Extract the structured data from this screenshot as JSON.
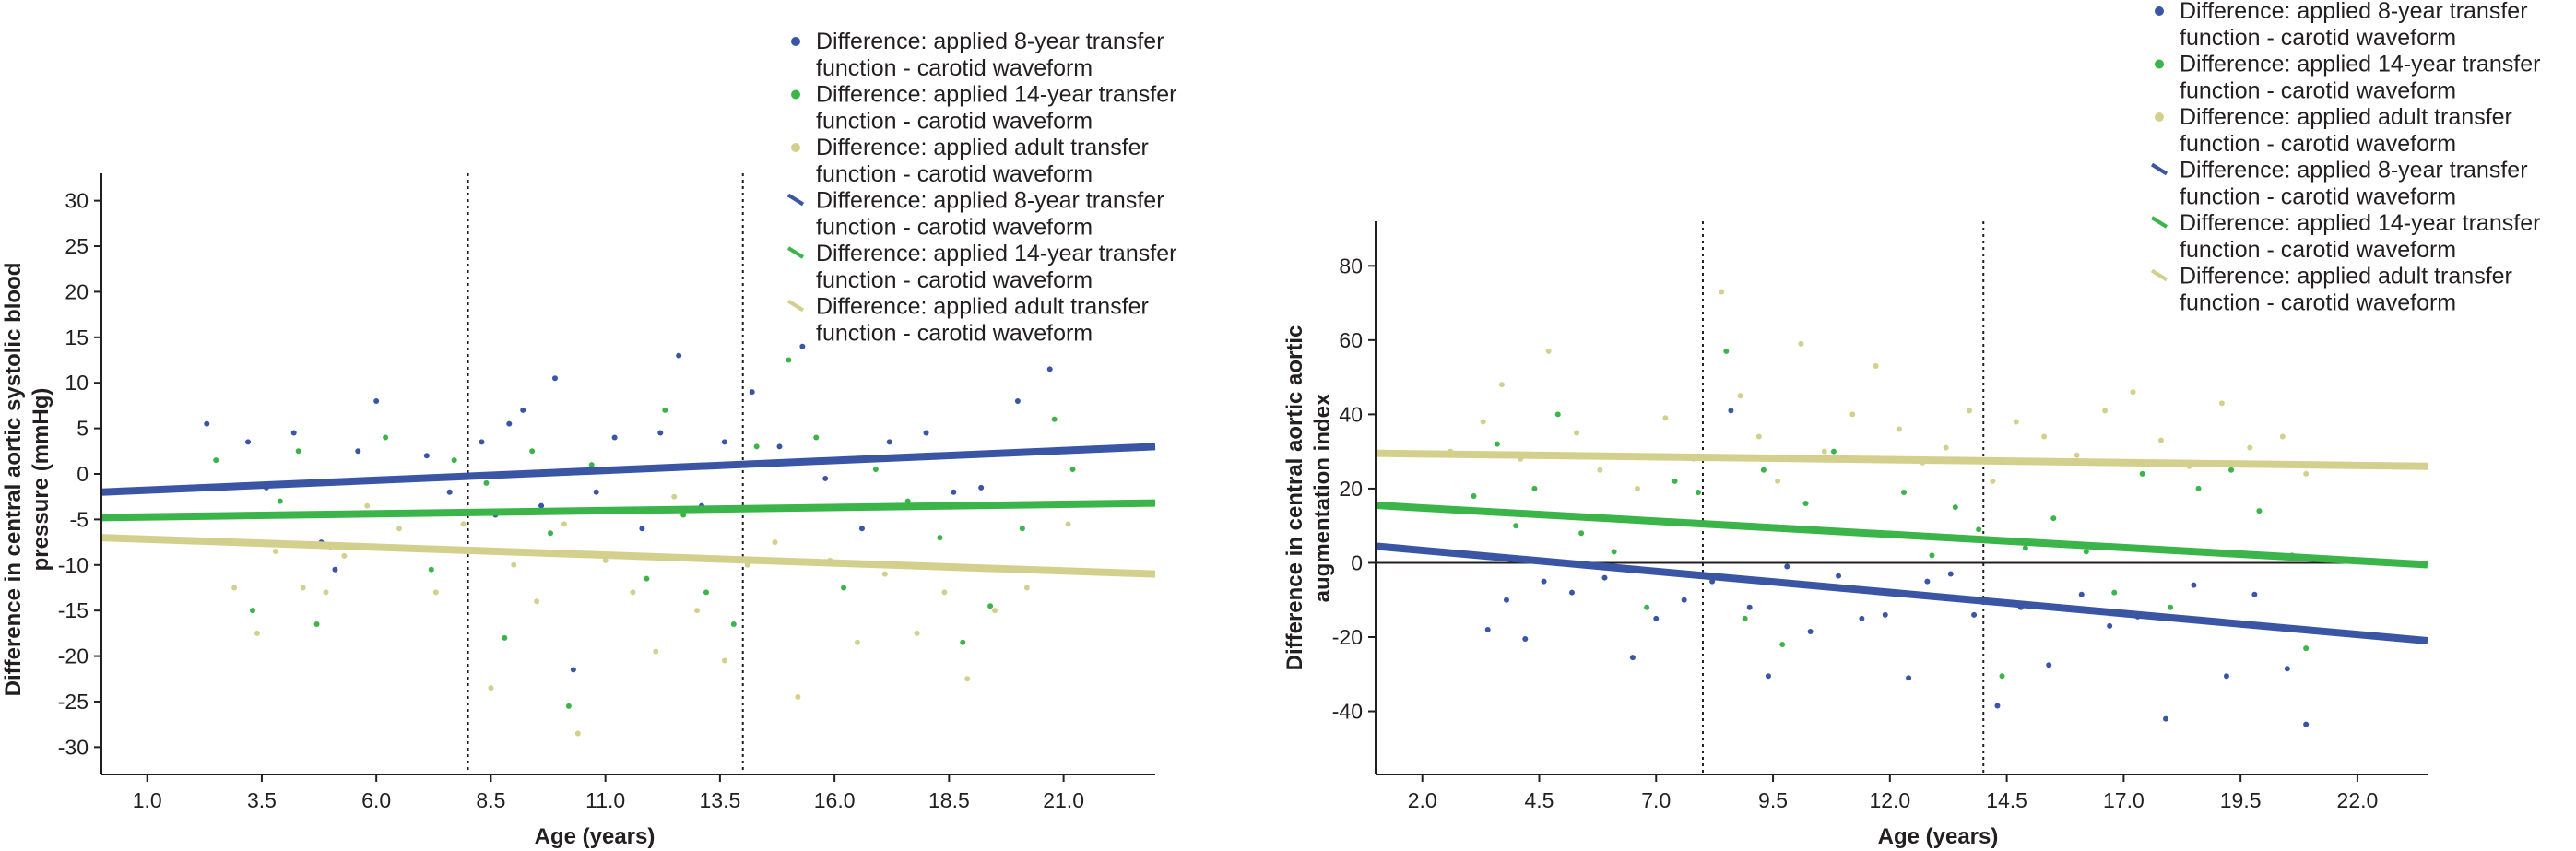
{
  "colors": {
    "blue": "#3a55a4",
    "green": "#3bb44a",
    "tan": "#d3d08e",
    "axis": "#231f20"
  },
  "chart_data": [
    {
      "type": "scatter",
      "xlabel": "Age (years)",
      "ylabel": "Difference in central aortic systolic blood pressure (mmHg)",
      "xlim": [
        0,
        23
      ],
      "ylim": [
        -33,
        33
      ],
      "x_ticks": [
        1.0,
        3.5,
        6.0,
        8.5,
        11.0,
        13.5,
        16.0,
        18.5,
        21.0
      ],
      "x_tick_labels": [
        "1.0",
        "3.5",
        "6.0",
        "8.5",
        "11.0",
        "13.5",
        "16.0",
        "18.5",
        "21.0"
      ],
      "y_ticks": [
        30,
        25,
        20,
        15,
        10,
        5,
        0,
        -5,
        -10,
        -15,
        -20,
        -25,
        -30
      ],
      "y_tick_labels": [
        "30",
        "25",
        "20",
        "15",
        "10",
        "5",
        "0",
        "-5",
        "-10",
        "-15",
        "-20",
        "-25",
        "-30"
      ],
      "vertical_lines": [
        8.0,
        14.0
      ],
      "legend_position": "top-right",
      "series": [
        {
          "name": "Difference: applied 8-year transfer function - carotid waveform",
          "color": "blue",
          "points": [
            [
              2.3,
              5.5
            ],
            [
              3.2,
              3.5
            ],
            [
              3.6,
              -1.5
            ],
            [
              4.2,
              4.5
            ],
            [
              4.8,
              -7.5
            ],
            [
              5.1,
              -10.5
            ],
            [
              5.6,
              2.5
            ],
            [
              6.0,
              8.0
            ],
            [
              7.1,
              2.0
            ],
            [
              7.6,
              -2.0
            ],
            [
              8.3,
              3.5
            ],
            [
              8.6,
              -4.5
            ],
            [
              8.9,
              5.5
            ],
            [
              9.2,
              7.0
            ],
            [
              9.6,
              -3.5
            ],
            [
              9.9,
              10.5
            ],
            [
              10.3,
              -21.5
            ],
            [
              10.8,
              -2.0
            ],
            [
              11.2,
              4.0
            ],
            [
              11.8,
              -6.0
            ],
            [
              12.2,
              4.5
            ],
            [
              12.6,
              13.0
            ],
            [
              13.1,
              -3.5
            ],
            [
              13.6,
              3.5
            ],
            [
              14.2,
              9.0
            ],
            [
              14.8,
              3.0
            ],
            [
              15.3,
              14.0
            ],
            [
              15.8,
              -0.5
            ],
            [
              16.6,
              -6.0
            ],
            [
              17.2,
              3.5
            ],
            [
              18.0,
              4.5
            ],
            [
              18.6,
              -2.0
            ],
            [
              19.2,
              -1.5
            ],
            [
              20.0,
              8.0
            ],
            [
              20.7,
              11.5
            ],
            [
              21.1,
              2.5
            ]
          ]
        },
        {
          "name": "Difference: applied 14-year transfer function - carotid waveform",
          "color": "green",
          "points": [
            [
              2.5,
              1.5
            ],
            [
              3.3,
              -15.0
            ],
            [
              3.9,
              -3.0
            ],
            [
              4.3,
              2.5
            ],
            [
              4.7,
              -16.5
            ],
            [
              5.0,
              -8.0
            ],
            [
              5.5,
              -4.5
            ],
            [
              6.2,
              4.0
            ],
            [
              7.2,
              -10.5
            ],
            [
              7.7,
              1.5
            ],
            [
              8.4,
              -1.0
            ],
            [
              8.8,
              -18.0
            ],
            [
              9.4,
              2.5
            ],
            [
              9.8,
              -6.5
            ],
            [
              10.2,
              -25.5
            ],
            [
              10.7,
              1.0
            ],
            [
              11.4,
              -4.0
            ],
            [
              11.9,
              -11.5
            ],
            [
              12.3,
              7.0
            ],
            [
              12.7,
              -4.5
            ],
            [
              13.2,
              -13.0
            ],
            [
              13.8,
              -16.5
            ],
            [
              14.3,
              3.0
            ],
            [
              15.0,
              12.5
            ],
            [
              15.6,
              4.0
            ],
            [
              16.2,
              -12.5
            ],
            [
              16.9,
              0.5
            ],
            [
              17.6,
              -3.0
            ],
            [
              18.3,
              -7.0
            ],
            [
              18.8,
              -18.5
            ],
            [
              19.4,
              -14.5
            ],
            [
              20.1,
              -6.0
            ],
            [
              20.8,
              6.0
            ],
            [
              21.2,
              0.5
            ]
          ]
        },
        {
          "name": "Difference: applied adult transfer function - carotid waveform",
          "color": "tan",
          "points": [
            [
              2.9,
              -12.5
            ],
            [
              3.4,
              -17.5
            ],
            [
              3.8,
              -8.5
            ],
            [
              4.4,
              -12.5
            ],
            [
              4.9,
              -13.0
            ],
            [
              5.3,
              -9.0
            ],
            [
              5.8,
              -3.5
            ],
            [
              6.5,
              -6.0
            ],
            [
              7.3,
              -13.0
            ],
            [
              7.9,
              -5.5
            ],
            [
              8.5,
              -23.5
            ],
            [
              9.0,
              -10.0
            ],
            [
              9.5,
              -14.0
            ],
            [
              10.1,
              -5.5
            ],
            [
              10.4,
              -28.5
            ],
            [
              11.0,
              -9.5
            ],
            [
              11.6,
              -13.0
            ],
            [
              12.1,
              -19.5
            ],
            [
              12.5,
              -2.5
            ],
            [
              13.0,
              -15.0
            ],
            [
              13.6,
              -20.5
            ],
            [
              14.1,
              -10.0
            ],
            [
              14.7,
              -7.5
            ],
            [
              15.2,
              -24.5
            ],
            [
              15.9,
              -9.5
            ],
            [
              16.5,
              -18.5
            ],
            [
              17.1,
              -11.0
            ],
            [
              17.8,
              -17.5
            ],
            [
              18.4,
              -13.0
            ],
            [
              18.9,
              -22.5
            ],
            [
              19.5,
              -15.0
            ],
            [
              20.2,
              -12.5
            ],
            [
              20.9,
              -10.5
            ],
            [
              21.1,
              -5.5
            ]
          ]
        }
      ],
      "trendlines": [
        {
          "name": "Difference: applied 8-year transfer function - carotid waveform",
          "color": "blue",
          "x": [
            0,
            23
          ],
          "y": [
            -2.0,
            3.0
          ]
        },
        {
          "name": "Difference: applied 14-year transfer function - carotid waveform",
          "color": "green",
          "x": [
            0,
            23
          ],
          "y": [
            -4.8,
            -3.2
          ]
        },
        {
          "name": "Difference: applied adult transfer function - carotid waveform",
          "color": "tan",
          "x": [
            0,
            23
          ],
          "y": [
            -7.0,
            -11.0
          ]
        }
      ]
    },
    {
      "type": "scatter",
      "xlabel": "Age (years)",
      "ylabel": "Difference in central aortic aortic augmentation index",
      "xlim": [
        1.0,
        23.5
      ],
      "ylim": [
        -57,
        92
      ],
      "x_ticks": [
        2.0,
        4.5,
        7.0,
        9.5,
        12.0,
        14.5,
        17.0,
        19.5,
        22.0
      ],
      "x_tick_labels": [
        "2.0",
        "4.5",
        "7.0",
        "9.5",
        "12.0",
        "14.5",
        "17.0",
        "19.5",
        "22.0"
      ],
      "y_ticks": [
        80,
        60,
        40,
        20,
        0,
        -20,
        -40
      ],
      "y_tick_labels": [
        "80",
        "60",
        "40",
        "20",
        "0",
        "-20",
        "-40"
      ],
      "vertical_lines": [
        8.0,
        14.0
      ],
      "zero_line": true,
      "legend_position": "top-right",
      "series": [
        {
          "name": "Difference: applied 8-year transfer function - carotid waveform",
          "color": "blue",
          "points": [
            [
              3.4,
              -18.0
            ],
            [
              3.8,
              -10.0
            ],
            [
              4.2,
              -20.5
            ],
            [
              4.6,
              -5.0
            ],
            [
              5.2,
              -8.0
            ],
            [
              5.9,
              -4.0
            ],
            [
              6.5,
              -25.5
            ],
            [
              7.0,
              -15.0
            ],
            [
              7.6,
              -10.0
            ],
            [
              8.2,
              -5.0
            ],
            [
              8.6,
              41.0
            ],
            [
              9.0,
              -12.0
            ],
            [
              9.4,
              -30.5
            ],
            [
              9.8,
              -1.0
            ],
            [
              10.3,
              -18.5
            ],
            [
              10.9,
              -3.5
            ],
            [
              11.4,
              -15.0
            ],
            [
              11.9,
              -14.0
            ],
            [
              12.4,
              -31.0
            ],
            [
              12.8,
              -5.0
            ],
            [
              13.3,
              -3.0
            ],
            [
              13.8,
              -14.0
            ],
            [
              14.3,
              -38.5
            ],
            [
              14.8,
              -12.0
            ],
            [
              15.4,
              -27.5
            ],
            [
              16.1,
              -8.5
            ],
            [
              16.7,
              -17.0
            ],
            [
              17.3,
              -14.5
            ],
            [
              17.9,
              -42.0
            ],
            [
              18.5,
              -6.0
            ],
            [
              19.2,
              -30.5
            ],
            [
              19.8,
              -8.5
            ],
            [
              20.5,
              -28.5
            ],
            [
              20.9,
              -43.5
            ]
          ]
        },
        {
          "name": "Difference: applied 14-year transfer function - carotid waveform",
          "color": "green",
          "points": [
            [
              3.1,
              18.0
            ],
            [
              3.6,
              32.0
            ],
            [
              4.0,
              10.0
            ],
            [
              4.4,
              20.0
            ],
            [
              4.9,
              40.0
            ],
            [
              5.4,
              8.0
            ],
            [
              6.1,
              3.0
            ],
            [
              6.8,
              -12.0
            ],
            [
              7.4,
              22.0
            ],
            [
              7.9,
              19.0
            ],
            [
              8.5,
              57.0
            ],
            [
              8.9,
              -15.0
            ],
            [
              9.3,
              25.0
            ],
            [
              9.7,
              -22.0
            ],
            [
              10.2,
              16.0
            ],
            [
              10.8,
              30.0
            ],
            [
              11.3,
              8.0
            ],
            [
              11.8,
              28.0
            ],
            [
              12.3,
              19.0
            ],
            [
              12.9,
              2.0
            ],
            [
              13.4,
              15.0
            ],
            [
              13.9,
              9.0
            ],
            [
              14.4,
              -30.5
            ],
            [
              14.9,
              4.0
            ],
            [
              15.5,
              12.0
            ],
            [
              16.2,
              3.0
            ],
            [
              16.8,
              -8.0
            ],
            [
              17.4,
              24.0
            ],
            [
              18.0,
              -12.0
            ],
            [
              18.6,
              20.0
            ],
            [
              19.3,
              25.0
            ],
            [
              19.9,
              14.0
            ],
            [
              20.6,
              2.0
            ],
            [
              20.9,
              -23.0
            ]
          ]
        },
        {
          "name": "Difference: applied adult transfer function - carotid waveform",
          "color": "tan",
          "points": [
            [
              2.6,
              30.0
            ],
            [
              3.3,
              38.0
            ],
            [
              3.7,
              48.0
            ],
            [
              4.1,
              28.0
            ],
            [
              4.7,
              57.0
            ],
            [
              5.3,
              35.0
            ],
            [
              5.8,
              25.0
            ],
            [
              6.6,
              20.0
            ],
            [
              7.2,
              39.0
            ],
            [
              7.8,
              28.0
            ],
            [
              8.4,
              73.0
            ],
            [
              8.8,
              45.0
            ],
            [
              9.2,
              34.0
            ],
            [
              9.6,
              22.0
            ],
            [
              10.1,
              59.0
            ],
            [
              10.6,
              30.0
            ],
            [
              11.2,
              40.0
            ],
            [
              11.7,
              53.0
            ],
            [
              12.2,
              36.0
            ],
            [
              12.7,
              27.0
            ],
            [
              13.2,
              31.0
            ],
            [
              13.7,
              41.0
            ],
            [
              14.2,
              22.0
            ],
            [
              14.7,
              38.0
            ],
            [
              15.3,
              34.0
            ],
            [
              16.0,
              29.0
            ],
            [
              16.6,
              41.0
            ],
            [
              17.2,
              46.0
            ],
            [
              17.8,
              33.0
            ],
            [
              18.4,
              26.0
            ],
            [
              19.1,
              43.0
            ],
            [
              19.7,
              31.0
            ],
            [
              20.4,
              34.0
            ],
            [
              20.9,
              24.0
            ]
          ]
        }
      ],
      "trendlines": [
        {
          "name": "Difference: applied 8-year transfer function - carotid waveform",
          "color": "blue",
          "x": [
            1.0,
            23.5
          ],
          "y": [
            4.5,
            -21.0
          ]
        },
        {
          "name": "Difference: applied 14-year transfer function - carotid waveform",
          "color": "green",
          "x": [
            1.0,
            23.5
          ],
          "y": [
            15.5,
            -0.5
          ]
        },
        {
          "name": "Difference: applied adult transfer function - carotid waveform",
          "color": "tan",
          "x": [
            1.0,
            23.5
          ],
          "y": [
            29.5,
            26.0
          ]
        }
      ]
    }
  ]
}
